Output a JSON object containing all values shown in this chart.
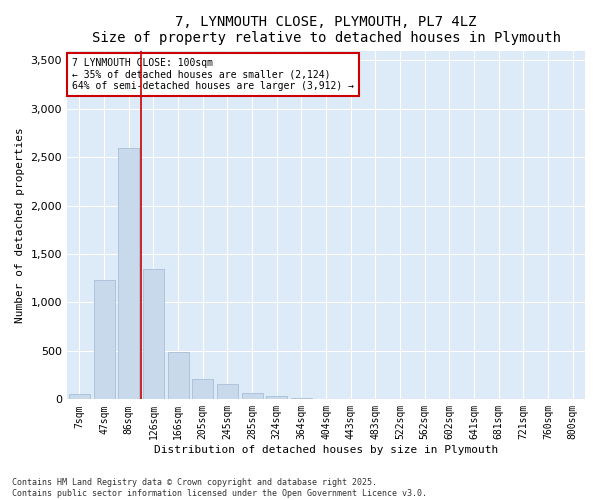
{
  "title": "7, LYNMOUTH CLOSE, PLYMOUTH, PL7 4LZ",
  "subtitle": "Size of property relative to detached houses in Plymouth",
  "xlabel": "Distribution of detached houses by size in Plymouth",
  "ylabel": "Number of detached properties",
  "categories": [
    "7sqm",
    "47sqm",
    "86sqm",
    "126sqm",
    "166sqm",
    "205sqm",
    "245sqm",
    "285sqm",
    "324sqm",
    "364sqm",
    "404sqm",
    "443sqm",
    "483sqm",
    "522sqm",
    "562sqm",
    "602sqm",
    "641sqm",
    "681sqm",
    "721sqm",
    "760sqm",
    "800sqm"
  ],
  "values": [
    50,
    1230,
    2590,
    1350,
    490,
    210,
    155,
    65,
    35,
    10,
    0,
    0,
    0,
    0,
    0,
    0,
    0,
    0,
    0,
    0,
    0
  ],
  "bar_color": "#c8d9ec",
  "bar_edge_color": "#a0b8d0",
  "vline_x": 2.5,
  "vline_color": "#cc0000",
  "annotation_title": "7 LYNMOUTH CLOSE: 100sqm",
  "annotation_line1": "← 35% of detached houses are smaller (2,124)",
  "annotation_line2": "64% of semi-detached houses are larger (3,912) →",
  "annotation_box_color": "#cc0000",
  "ylim": [
    0,
    3600
  ],
  "yticks": [
    0,
    500,
    1000,
    1500,
    2000,
    2500,
    3000,
    3500
  ],
  "footer1": "Contains HM Land Registry data © Crown copyright and database right 2025.",
  "footer2": "Contains public sector information licensed under the Open Government Licence v3.0.",
  "fig_bg_color": "#ffffff",
  "plot_bg_color": "#ddeaf7"
}
